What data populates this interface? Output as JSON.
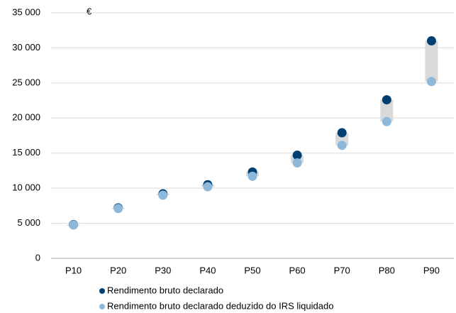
{
  "chart_data": {
    "type": "dot_range",
    "y_unit": "€",
    "categories": [
      "P10",
      "P20",
      "P30",
      "P40",
      "P50",
      "P60",
      "P70",
      "P80",
      "P90"
    ],
    "series": [
      {
        "name": "Rendimento bruto declarado",
        "color": "#003f72",
        "values": [
          4800,
          7200,
          9200,
          10500,
          12300,
          14700,
          17900,
          22600,
          31000
        ]
      },
      {
        "name": "Rendimento bruto declarado deduzido do IRS liquidado",
        "color": "#8db8da",
        "values": [
          4750,
          7100,
          9000,
          10200,
          11700,
          13600,
          16100,
          19500,
          25200
        ]
      }
    ],
    "range_color": "#d9d9d9",
    "ylim": [
      0,
      35000
    ],
    "yticks": [
      {
        "value": 0,
        "label": "0"
      },
      {
        "value": 5000,
        "label": "5 000"
      },
      {
        "value": 10000,
        "label": "10 000"
      },
      {
        "value": 15000,
        "label": "15 000"
      },
      {
        "value": 20000,
        "label": "20 000"
      },
      {
        "value": 25000,
        "label": "25 000"
      },
      {
        "value": 30000,
        "label": "30 000"
      },
      {
        "value": 35000,
        "label": "35 000"
      }
    ],
    "grid": true,
    "legend": "bottom"
  }
}
